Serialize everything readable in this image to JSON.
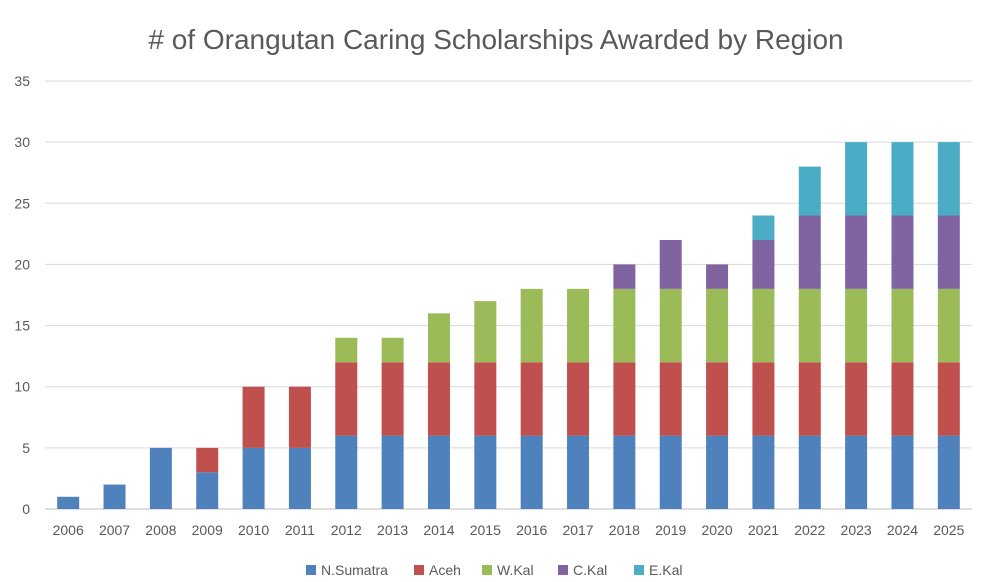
{
  "chart_data": {
    "type": "bar",
    "stacked": true,
    "title": "# of Orangutan Caring Scholarships Awarded by Region",
    "xlabel": "",
    "ylabel": "",
    "ylim": [
      0,
      35
    ],
    "yticks": [
      0,
      5,
      10,
      15,
      20,
      25,
      30,
      35
    ],
    "grid": true,
    "legend_position": "bottom",
    "categories": [
      "2006",
      "2007",
      "2008",
      "2009",
      "2010",
      "2011",
      "2012",
      "2013",
      "2014",
      "2015",
      "2016",
      "2017",
      "2018",
      "2019",
      "2020",
      "2021",
      "2022",
      "2023",
      "2024",
      "2025"
    ],
    "series": [
      {
        "name": "N.Sumatra",
        "color": "#4F81BD",
        "values": [
          1,
          2,
          5,
          3,
          5,
          5,
          6,
          6,
          6,
          6,
          6,
          6,
          6,
          6,
          6,
          6,
          6,
          6,
          6,
          6
        ]
      },
      {
        "name": "Aceh",
        "color": "#C0504D",
        "values": [
          0,
          0,
          0,
          2,
          5,
          5,
          6,
          6,
          6,
          6,
          6,
          6,
          6,
          6,
          6,
          6,
          6,
          6,
          6,
          6
        ]
      },
      {
        "name": "W.Kal",
        "color": "#9BBB59",
        "values": [
          0,
          0,
          0,
          0,
          0,
          0,
          2,
          2,
          4,
          5,
          6,
          6,
          6,
          6,
          6,
          6,
          6,
          6,
          6,
          6
        ]
      },
      {
        "name": "C.Kal",
        "color": "#8064A2",
        "values": [
          0,
          0,
          0,
          0,
          0,
          0,
          0,
          0,
          0,
          0,
          0,
          0,
          2,
          4,
          2,
          4,
          6,
          6,
          6,
          6
        ]
      },
      {
        "name": "E.Kal",
        "color": "#4BACC6",
        "values": [
          0,
          0,
          0,
          0,
          0,
          0,
          0,
          0,
          0,
          0,
          0,
          0,
          0,
          0,
          0,
          2,
          4,
          6,
          6,
          6
        ]
      }
    ]
  }
}
